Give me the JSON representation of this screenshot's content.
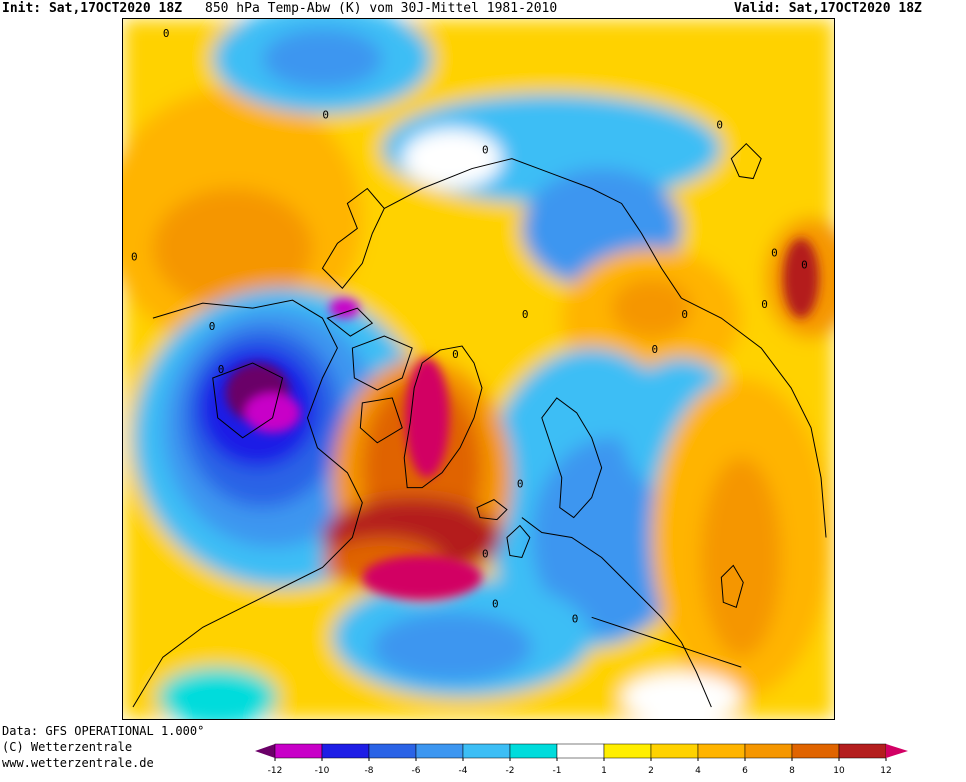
{
  "header": {
    "init_label": "Init:",
    "init_time": "Sat,17OCT2020 18Z",
    "parameter": "850 hPa Temp-Abw (K) vom 30J-Mittel 1981-2010",
    "valid_label": "Valid:",
    "valid_time": "Sat,17OCT2020 18Z"
  },
  "footer": {
    "data_source": "Data: GFS OPERATIONAL 1.000°",
    "copyright": "(C) Wetterzentrale",
    "website": "www.wetterzentrale.de"
  },
  "legend": {
    "ticks": [
      "-12",
      "-10",
      "-8",
      "-6",
      "-4",
      "-2",
      "-1",
      "1",
      "2",
      "4",
      "6",
      "8",
      "10",
      "12"
    ],
    "colors": {
      "lt_m12": "#6b0068",
      "m12_m10": "#c800c8",
      "m10_m8": "#1e1ee6",
      "m8_m6": "#2a63e6",
      "m6_m4": "#3c96f0",
      "m4_m2": "#3cbef5",
      "m2_m1": "#00dcdc",
      "m1_p1": "#ffffff",
      "p1_p2": "#ffee00",
      "p2_p4": "#ffd200",
      "p4_p6": "#ffb400",
      "p6_p8": "#f59600",
      "p8_p10": "#e06400",
      "p10_p12": "#b41e1e",
      "gt_p12": "#d20064"
    }
  },
  "map": {
    "projection": "polar stereographic, northern hemisphere",
    "contour_label": "0"
  }
}
